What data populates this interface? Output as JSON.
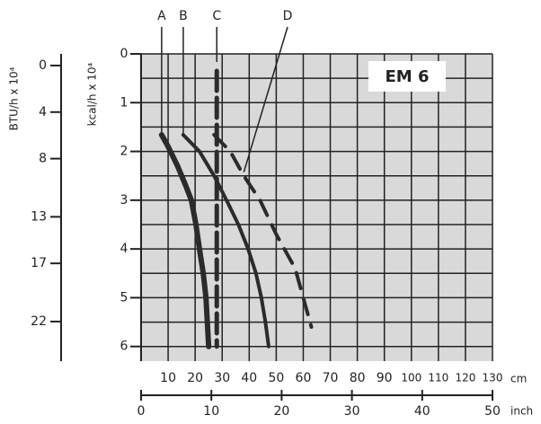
{
  "chart_data": {
    "type": "line",
    "badge": "EM 6",
    "ylabel": "kcal/h x 10⁴",
    "y2label": "BTU/h x 10⁴",
    "xlabel": "cm",
    "x2label": "inch",
    "xlim": [
      0,
      130
    ],
    "xticks": [
      10,
      20,
      30,
      40,
      50,
      60,
      70,
      80,
      90,
      100,
      110,
      120,
      130
    ],
    "x2lim": [
      0,
      50
    ],
    "x2ticks": [
      0,
      10,
      20,
      30,
      40,
      50
    ],
    "ylim": [
      0,
      6.3
    ],
    "yticks": [
      0,
      1,
      2,
      3,
      4,
      5,
      6
    ],
    "y2lim": [
      -1,
      25.4
    ],
    "y2ticks": [
      0,
      4,
      8,
      13,
      17,
      22
    ],
    "grid": true,
    "series": [
      {
        "name": "A",
        "color": "#2b2b2b",
        "dashed": false,
        "x": [
          7.6,
          10,
          13.5,
          16.5,
          18.6,
          20.3,
          21.6,
          23,
          24,
          24.5,
          25
        ],
        "values": [
          1.66,
          1.9,
          2.3,
          2.7,
          3.0,
          3.5,
          4.0,
          4.5,
          5,
          5.5,
          6
        ]
      },
      {
        "name": "B",
        "color": "#2b2b2b",
        "dashed": false,
        "x": [
          15.6,
          21.6,
          27,
          31.6,
          36,
          39.6,
          42.5,
          44.5,
          46,
          47.2
        ],
        "values": [
          1.66,
          2,
          2.5,
          3,
          3.5,
          4,
          4.5,
          5,
          5.5,
          6
        ]
      },
      {
        "name": "C",
        "color": "#2b2b2b",
        "dashed": true,
        "x": [
          28,
          28
        ],
        "values": [
          0.35,
          6
        ]
      },
      {
        "name": "D",
        "color": "#2b2b2b",
        "dashed": true,
        "x": [
          27,
          33,
          38,
          44,
          50,
          57,
          63
        ],
        "values": [
          1.66,
          2,
          2.5,
          3,
          3.7,
          4.4,
          5.6
        ]
      }
    ]
  }
}
